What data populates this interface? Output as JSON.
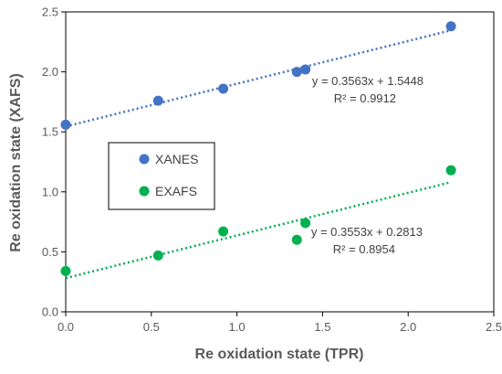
{
  "chart_data": {
    "type": "scatter",
    "title": "",
    "xlabel": "Re oxidation state (TPR)",
    "ylabel": "Re oxidation state (XAFS)",
    "xlim": [
      0,
      2.5
    ],
    "ylim": [
      0,
      2.5
    ],
    "x_ticks": [
      "0.0",
      "0.5",
      "1.0",
      "1.5",
      "2.0",
      "2.5"
    ],
    "y_ticks": [
      "0.0",
      "0.5",
      "1.0",
      "1.5",
      "2.0",
      "2.5"
    ],
    "grid": false,
    "legend_placement": "left",
    "series": [
      {
        "name": "XANES",
        "color": "#4472C4",
        "points": [
          {
            "x": 0.0,
            "y": 1.56
          },
          {
            "x": 0.54,
            "y": 1.76
          },
          {
            "x": 0.92,
            "y": 1.86
          },
          {
            "x": 1.35,
            "y": 2.0
          },
          {
            "x": 1.4,
            "y": 2.02
          },
          {
            "x": 2.25,
            "y": 2.38
          }
        ],
        "trendline": {
          "slope": 0.3563,
          "intercept": 1.5448,
          "x_range": [
            0,
            2.25
          ]
        },
        "equation": "y = 0.3563x + 1.5448",
        "r2": "R² = 0.9912"
      },
      {
        "name": "EXAFS",
        "color": "#00B050",
        "points": [
          {
            "x": 0.0,
            "y": 0.34
          },
          {
            "x": 0.54,
            "y": 0.47
          },
          {
            "x": 0.92,
            "y": 0.67
          },
          {
            "x": 1.35,
            "y": 0.6
          },
          {
            "x": 1.4,
            "y": 0.74
          },
          {
            "x": 2.25,
            "y": 1.18
          }
        ],
        "trendline": {
          "slope": 0.3553,
          "intercept": 0.2813,
          "x_range": [
            0,
            2.25
          ]
        },
        "equation": "y = 0.3553x + 0.2813",
        "r2": "R² = 0.8954"
      }
    ]
  }
}
